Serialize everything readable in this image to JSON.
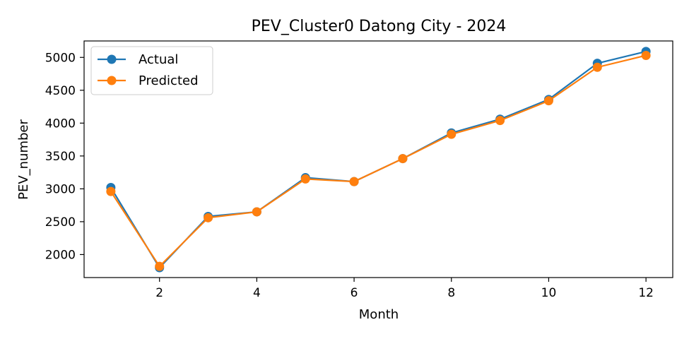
{
  "chart_data": {
    "type": "line",
    "title": "PEV_Cluster0 Datong City - 2024",
    "xlabel": "Month",
    "ylabel": "PEV_number",
    "x": [
      1,
      2,
      3,
      4,
      5,
      6,
      7,
      8,
      9,
      10,
      11,
      12
    ],
    "xticks": [
      2,
      4,
      6,
      8,
      10,
      12
    ],
    "yticks": [
      2000,
      2500,
      3000,
      3500,
      4000,
      4500,
      5000
    ],
    "xlim": [
      0.45,
      12.55
    ],
    "ylim": [
      1650,
      5250
    ],
    "grid": false,
    "legend_position": "upper left",
    "series": [
      {
        "name": "Actual",
        "color": "#1f77b4",
        "marker": "circle",
        "values": [
          3020,
          1800,
          2580,
          2650,
          3170,
          3110,
          3460,
          3850,
          4060,
          4360,
          4910,
          5090
        ]
      },
      {
        "name": "Predicted",
        "color": "#ff7f0e",
        "marker": "circle",
        "values": [
          2960,
          1820,
          2560,
          2650,
          3150,
          3110,
          3460,
          3830,
          4040,
          4340,
          4850,
          5030
        ]
      }
    ]
  }
}
